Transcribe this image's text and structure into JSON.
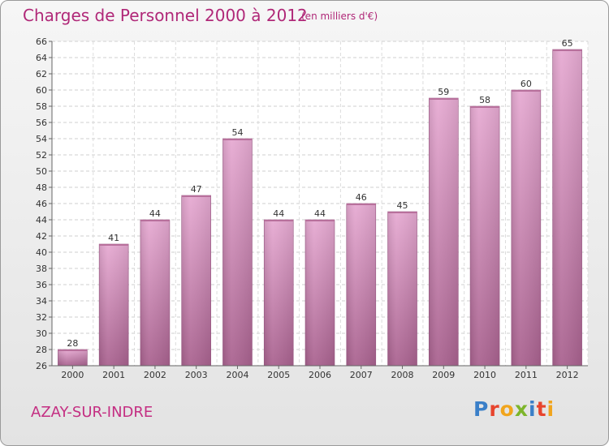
{
  "chart_data": {
    "type": "bar",
    "title": "Charges de Personnel 2000 à 2012",
    "subtitle": "(en milliers d'€)",
    "categories": [
      "2000",
      "2001",
      "2002",
      "2003",
      "2004",
      "2005",
      "2006",
      "2007",
      "2008",
      "2009",
      "2010",
      "2011",
      "2012"
    ],
    "values": [
      28,
      41,
      44,
      47,
      54,
      44,
      44,
      46,
      45,
      59,
      58,
      60,
      65
    ],
    "ylim": [
      26,
      66
    ],
    "yticks": [
      26,
      28,
      30,
      32,
      34,
      36,
      38,
      40,
      42,
      44,
      46,
      48,
      50,
      52,
      54,
      56,
      58,
      60,
      62,
      64,
      66
    ],
    "grid": true,
    "bar_color": "#c9609a"
  },
  "footer": {
    "commune": "AZAY-SUR-INDRE",
    "logo_text": "Proxiti"
  },
  "colors": {
    "title": "#b02878",
    "bar_top": "#e3a8cf",
    "bar_bottom": "#a9628f"
  }
}
